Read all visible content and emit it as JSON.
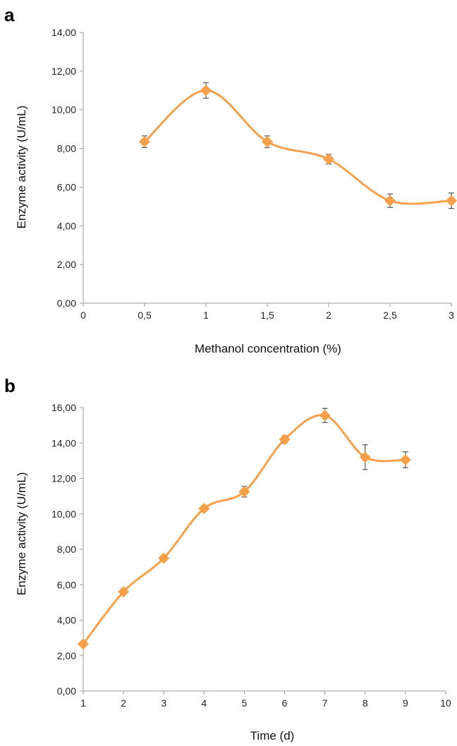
{
  "colors": {
    "series": "#F7A04A",
    "axis": "#9a9a9a",
    "error_bar": "#555555"
  },
  "chart_data": [
    {
      "panel": "a",
      "type": "line",
      "xlabel": "Methanol concentration (%)",
      "ylabel": "Enzyme activity (U/mL)",
      "xlim": [
        0,
        3
      ],
      "ylim": [
        0,
        14
      ],
      "x_ticks": [
        "0",
        "0,5",
        "1",
        "1,5",
        "2",
        "2,5",
        "3"
      ],
      "y_ticks": [
        "0,00",
        "2,00",
        "4,00",
        "6,00",
        "8,00",
        "10,00",
        "12,00",
        "14,00"
      ],
      "x": [
        0.5,
        1,
        1.5,
        2,
        2.5,
        3
      ],
      "values": [
        8.35,
        11.0,
        8.35,
        7.45,
        5.3,
        5.3
      ],
      "errors": [
        0.3,
        0.4,
        0.3,
        0.25,
        0.35,
        0.4
      ],
      "marker": "diamond",
      "smooth": true,
      "grid": false
    },
    {
      "panel": "b",
      "type": "line",
      "xlabel": "Time (d)",
      "ylabel": "Enzyme activity (U/mL)",
      "xlim": [
        1,
        10
      ],
      "ylim": [
        0,
        16
      ],
      "x_ticks": [
        "1",
        "2",
        "3",
        "4",
        "5",
        "6",
        "7",
        "8",
        "9",
        "10"
      ],
      "y_ticks": [
        "0,00",
        "2,00",
        "4,00",
        "6,00",
        "8,00",
        "10,00",
        "12,00",
        "14,00",
        "16,00"
      ],
      "x": [
        1,
        2,
        3,
        4,
        5,
        6,
        7,
        8,
        9
      ],
      "values": [
        2.65,
        5.6,
        7.5,
        10.3,
        11.25,
        14.2,
        15.55,
        13.2,
        13.05
      ],
      "errors": [
        0.1,
        0.15,
        0.15,
        0.15,
        0.3,
        0.2,
        0.4,
        0.7,
        0.45
      ],
      "marker": "diamond",
      "smooth": true,
      "grid": false
    }
  ]
}
